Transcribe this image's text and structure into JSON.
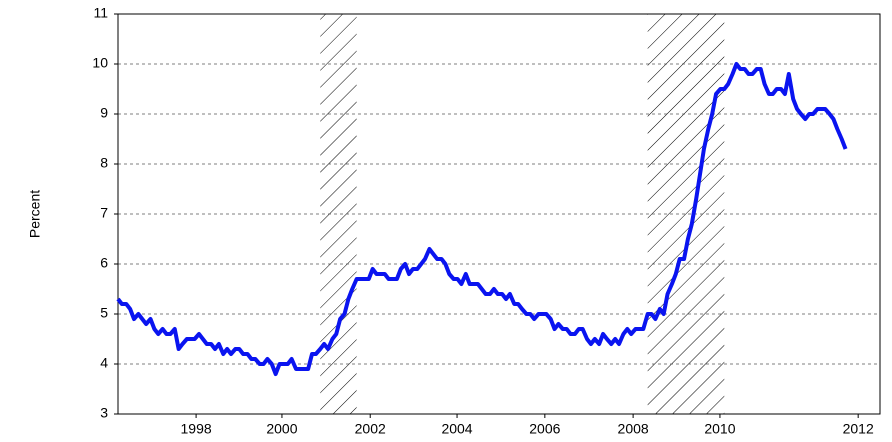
{
  "chart_data": {
    "type": "line",
    "ylabel": "Percent",
    "color": "#0a14f0",
    "grid": true,
    "xlim": [
      1997.0,
      2012.71
    ],
    "ylim": [
      3,
      11
    ],
    "yticks": [
      3,
      4,
      5,
      6,
      7,
      8,
      9,
      10,
      11
    ],
    "xticks": [
      {
        "value": 1998.61,
        "label": "1998"
      },
      {
        "value": 2000.38,
        "label": "2000"
      },
      {
        "value": 2002.2,
        "label": "2002"
      },
      {
        "value": 2003.99,
        "label": "2004"
      },
      {
        "value": 2005.8,
        "label": "2006"
      },
      {
        "value": 2007.62,
        "label": "2008"
      },
      {
        "value": 2009.41,
        "label": "2010"
      },
      {
        "value": 2012.26,
        "label": "2012"
      }
    ],
    "recessions": [
      [
        2001.17,
        2001.92
      ],
      [
        2007.92,
        2009.5
      ]
    ],
    "x": [
      1997,
      1997.08,
      1997.17,
      1997.25,
      1997.33,
      1997.42,
      1997.5,
      1997.58,
      1997.67,
      1997.75,
      1997.83,
      1997.92,
      1998,
      1998.08,
      1998.17,
      1998.25,
      1998.33,
      1998.42,
      1998.5,
      1998.58,
      1998.67,
      1998.75,
      1998.83,
      1998.92,
      1999,
      1999.08,
      1999.17,
      1999.25,
      1999.33,
      1999.42,
      1999.5,
      1999.58,
      1999.67,
      1999.75,
      1999.83,
      1999.92,
      2000,
      2000.08,
      2000.17,
      2000.25,
      2000.33,
      2000.42,
      2000.5,
      2000.58,
      2000.67,
      2000.75,
      2000.83,
      2000.92,
      2001,
      2001.08,
      2001.17,
      2001.25,
      2001.33,
      2001.42,
      2001.5,
      2001.58,
      2001.67,
      2001.75,
      2001.83,
      2001.92,
      2002,
      2002.08,
      2002.17,
      2002.25,
      2002.33,
      2002.42,
      2002.5,
      2002.58,
      2002.67,
      2002.75,
      2002.83,
      2002.92,
      2003,
      2003.08,
      2003.17,
      2003.25,
      2003.33,
      2003.42,
      2003.5,
      2003.58,
      2003.67,
      2003.75,
      2003.83,
      2003.92,
      2004,
      2004.08,
      2004.17,
      2004.25,
      2004.33,
      2004.42,
      2004.5,
      2004.58,
      2004.67,
      2004.75,
      2004.83,
      2004.92,
      2005,
      2005.08,
      2005.17,
      2005.25,
      2005.33,
      2005.42,
      2005.5,
      2005.58,
      2005.67,
      2005.75,
      2005.83,
      2005.92,
      2006,
      2006.08,
      2006.17,
      2006.25,
      2006.33,
      2006.42,
      2006.5,
      2006.58,
      2006.67,
      2006.75,
      2006.83,
      2006.92,
      2007,
      2007.08,
      2007.17,
      2007.25,
      2007.33,
      2007.42,
      2007.5,
      2007.58,
      2007.67,
      2007.75,
      2007.83,
      2007.92,
      2008,
      2008.08,
      2008.17,
      2008.25,
      2008.33,
      2008.42,
      2008.5,
      2008.58,
      2008.67,
      2008.75,
      2008.83,
      2008.92,
      2009,
      2009.08,
      2009.17,
      2009.25,
      2009.33,
      2009.42,
      2009.5,
      2009.58,
      2009.67,
      2009.75,
      2009.83,
      2009.92,
      2010,
      2010.08,
      2010.17,
      2010.25,
      2010.33,
      2010.42,
      2010.5,
      2010.58,
      2010.67,
      2010.75,
      2010.83,
      2010.92,
      2011,
      2011.08,
      2011.17,
      2011.25,
      2011.33,
      2011.42,
      2011.5,
      2011.58,
      2011.67,
      2011.75,
      2011.83,
      2011.92,
      2012
    ],
    "values": [
      5.3,
      5.2,
      5.2,
      5.1,
      4.9,
      5.0,
      4.9,
      4.8,
      4.9,
      4.7,
      4.6,
      4.7,
      4.6,
      4.6,
      4.7,
      4.3,
      4.4,
      4.5,
      4.5,
      4.5,
      4.6,
      4.5,
      4.4,
      4.4,
      4.3,
      4.4,
      4.2,
      4.3,
      4.2,
      4.3,
      4.3,
      4.2,
      4.2,
      4.1,
      4.1,
      4.0,
      4.0,
      4.1,
      4.0,
      3.8,
      4.0,
      4.0,
      4.0,
      4.1,
      3.9,
      3.9,
      3.9,
      3.9,
      4.2,
      4.2,
      4.3,
      4.4,
      4.3,
      4.5,
      4.6,
      4.9,
      5.0,
      5.3,
      5.5,
      5.7,
      5.7,
      5.7,
      5.7,
      5.9,
      5.8,
      5.8,
      5.8,
      5.7,
      5.7,
      5.7,
      5.9,
      6.0,
      5.8,
      5.9,
      5.9,
      6.0,
      6.1,
      6.3,
      6.2,
      6.1,
      6.1,
      6.0,
      5.8,
      5.7,
      5.7,
      5.6,
      5.8,
      5.6,
      5.6,
      5.6,
      5.5,
      5.4,
      5.4,
      5.5,
      5.4,
      5.4,
      5.3,
      5.4,
      5.2,
      5.2,
      5.1,
      5.0,
      5.0,
      4.9,
      5.0,
      5.0,
      5.0,
      4.9,
      4.7,
      4.8,
      4.7,
      4.7,
      4.6,
      4.6,
      4.7,
      4.7,
      4.5,
      4.4,
      4.5,
      4.4,
      4.6,
      4.5,
      4.4,
      4.5,
      4.4,
      4.6,
      4.7,
      4.6,
      4.7,
      4.7,
      4.7,
      5.0,
      5.0,
      4.9,
      5.1,
      5.0,
      5.4,
      5.6,
      5.8,
      6.1,
      6.1,
      6.5,
      6.8,
      7.3,
      7.8,
      8.3,
      8.7,
      9.0,
      9.4,
      9.5,
      9.5,
      9.6,
      9.8,
      10.0,
      9.9,
      9.9,
      9.8,
      9.8,
      9.9,
      9.9,
      9.6,
      9.4,
      9.4,
      9.5,
      9.5,
      9.4,
      9.8,
      9.3,
      9.1,
      9.0,
      8.9,
      9.0,
      9.0,
      9.1,
      9.1,
      9.1,
      9.0,
      8.9,
      8.7,
      8.5,
      8.3
    ]
  }
}
